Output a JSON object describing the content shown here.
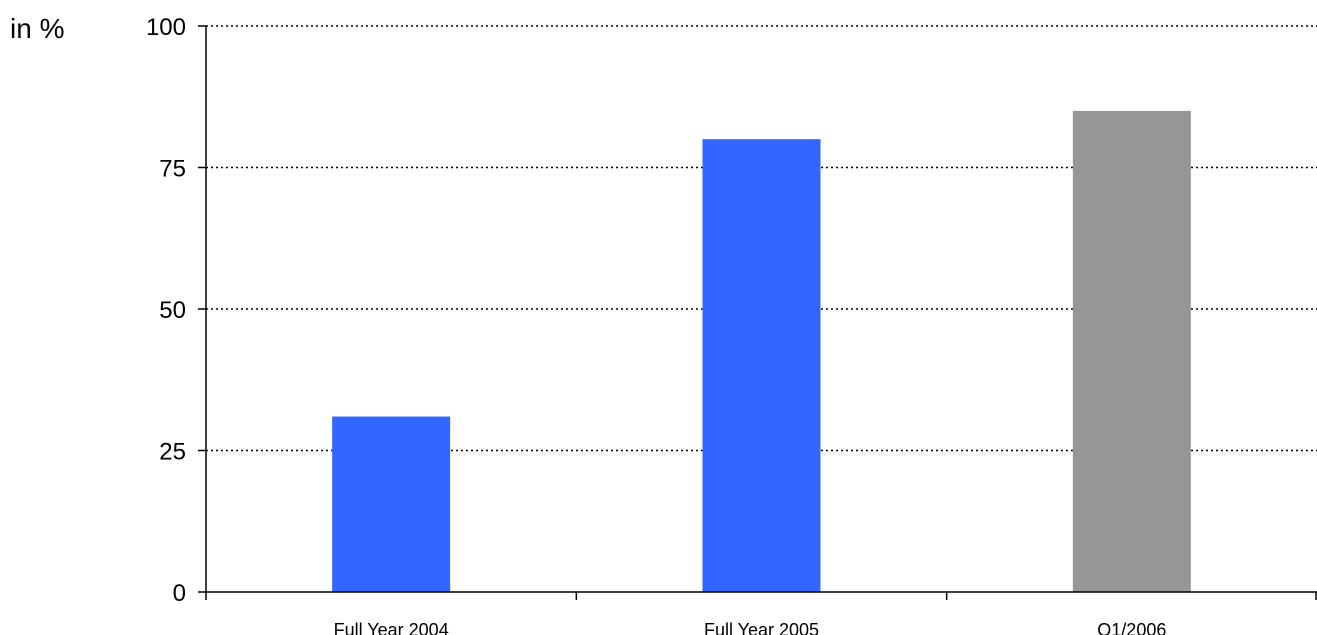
{
  "chart_data": {
    "type": "bar",
    "ylabel": "in %",
    "categories": [
      "Full Year 2004",
      "Full Year 2005",
      "Q1/2006"
    ],
    "values": [
      31,
      80,
      85
    ],
    "bar_colors": [
      "#3366ff",
      "#3366ff",
      "#969696"
    ],
    "ylim": [
      0,
      100
    ],
    "yticks": [
      "0",
      "25",
      "50",
      "75",
      "100"
    ],
    "grid": "horizontal dotted",
    "legend": "none"
  }
}
